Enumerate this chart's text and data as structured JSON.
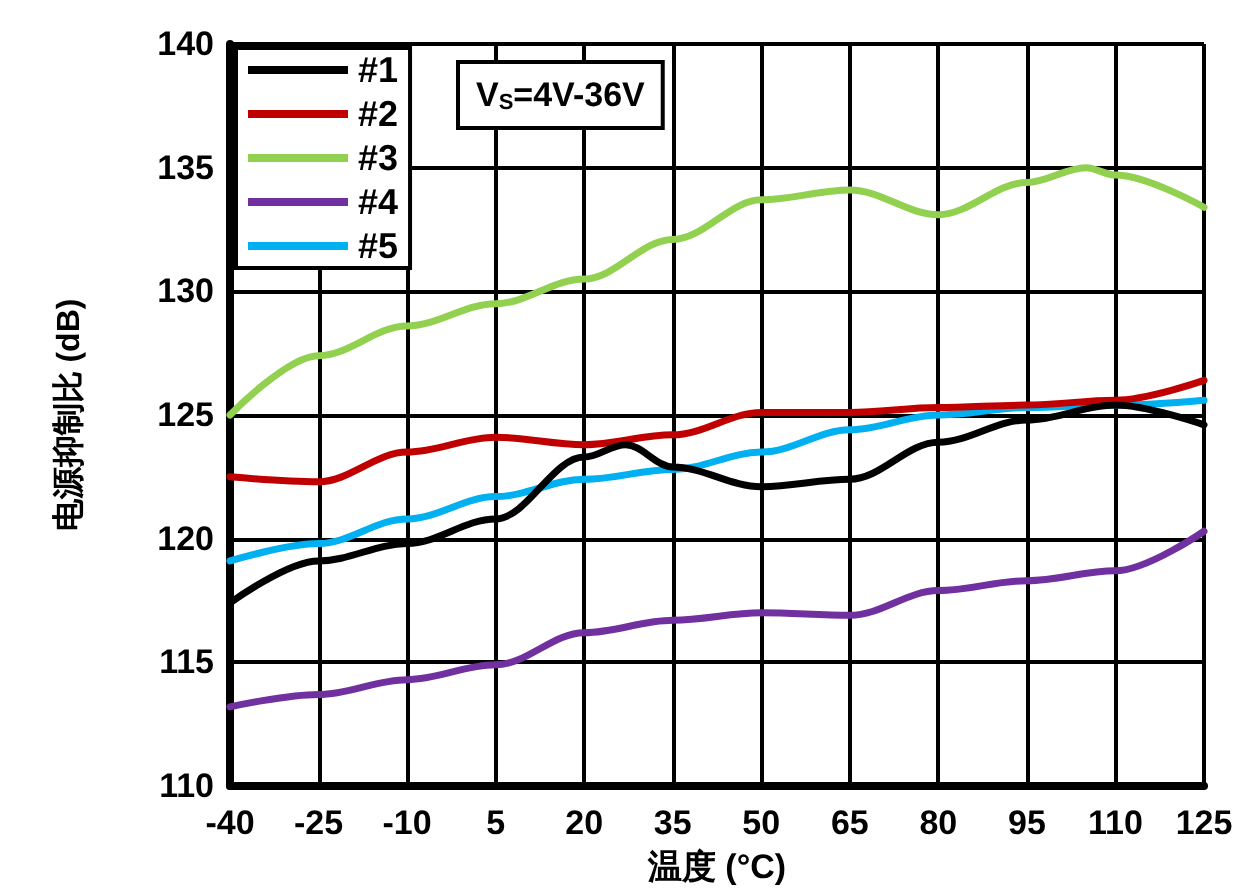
{
  "chart_data": {
    "type": "line",
    "xlabel": "温度 (°C)",
    "ylabel": "电源抑制比 (dB)",
    "annotations": [
      "V$_{S}$=4V-36V"
    ],
    "xlim": [
      -40,
      125
    ],
    "xticks": [
      -40,
      -25,
      -10,
      5,
      20,
      35,
      50,
      65,
      80,
      95,
      110,
      125
    ],
    "ylim": [
      110,
      140
    ],
    "yticks": [
      110,
      115,
      120,
      125,
      130,
      135,
      140
    ],
    "grid": true,
    "legend": "top left",
    "marker": "none",
    "line_style": "solid",
    "series": [
      {
        "name": "#1",
        "color": "#000000",
        "x": [
          -40,
          -25,
          -10,
          5,
          20,
          27,
          35,
          50,
          65,
          80,
          95,
          110,
          125
        ],
        "values": [
          117.4,
          119.1,
          119.8,
          120.8,
          123.3,
          123.8,
          122.9,
          122.1,
          122.4,
          123.9,
          124.8,
          125.4,
          124.6
        ]
      },
      {
        "name": "#2",
        "color": "#c00000",
        "x": [
          -40,
          -25,
          -10,
          5,
          20,
          35,
          50,
          65,
          80,
          95,
          110,
          125
        ],
        "values": [
          122.5,
          122.3,
          123.5,
          124.1,
          123.8,
          124.2,
          125.1,
          125.1,
          125.3,
          125.4,
          125.6,
          126.4
        ]
      },
      {
        "name": "#3",
        "color": "#92d050",
        "x": [
          -40,
          -25,
          -10,
          5,
          20,
          35,
          50,
          65,
          80,
          95,
          105,
          110,
          125
        ],
        "values": [
          125.0,
          127.4,
          128.6,
          129.5,
          130.5,
          132.1,
          133.7,
          134.1,
          133.1,
          134.4,
          135.0,
          134.7,
          133.4
        ]
      },
      {
        "name": "#4",
        "color": "#7030a0",
        "x": [
          -40,
          -25,
          -10,
          5,
          20,
          35,
          50,
          65,
          80,
          95,
          110,
          125
        ],
        "values": [
          113.2,
          113.7,
          114.3,
          114.9,
          116.2,
          116.7,
          117.0,
          116.9,
          117.9,
          118.3,
          118.7,
          120.3
        ]
      },
      {
        "name": "#5",
        "color": "#00b0f0",
        "x": [
          -40,
          -25,
          -10,
          5,
          20,
          35,
          50,
          65,
          80,
          95,
          110,
          125
        ],
        "values": [
          119.1,
          119.8,
          120.8,
          121.7,
          122.4,
          122.8,
          123.5,
          124.4,
          125.0,
          125.3,
          125.4,
          125.6
        ]
      }
    ]
  }
}
